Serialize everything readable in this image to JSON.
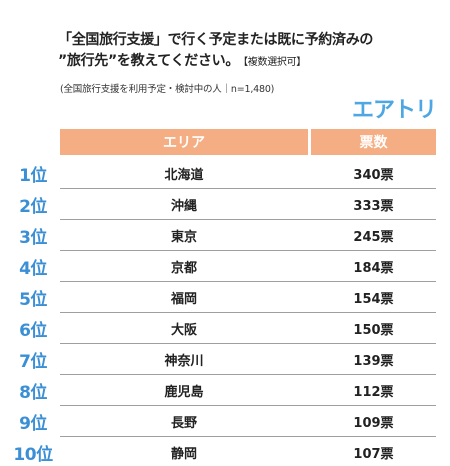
{
  "title": {
    "line1": "「全国旅行支援」で行く予定または既に予約済みの",
    "line2": "”旅行先”を教えてください。",
    "note": "【複数選択可】"
  },
  "subtitle": "(全国旅行支援を利用予定・検討中の人｜n=1,480)",
  "brand": "エアトリ",
  "colors": {
    "header": "#f5ae83",
    "rank": "#3b8fd4",
    "brand": "#4ea6e2"
  },
  "table": {
    "headers": {
      "area": "エリア",
      "votes": "票数"
    },
    "rows": [
      {
        "rank": "1位",
        "area": "北海道",
        "votes": "340票"
      },
      {
        "rank": "2位",
        "area": "沖縄",
        "votes": "333票"
      },
      {
        "rank": "3位",
        "area": "東京",
        "votes": "245票"
      },
      {
        "rank": "4位",
        "area": "京都",
        "votes": "184票"
      },
      {
        "rank": "5位",
        "area": "福岡",
        "votes": "154票"
      },
      {
        "rank": "6位",
        "area": "大阪",
        "votes": "150票"
      },
      {
        "rank": "7位",
        "area": "神奈川",
        "votes": "139票"
      },
      {
        "rank": "8位",
        "area": "鹿児島",
        "votes": "112票"
      },
      {
        "rank": "9位",
        "area": "長野",
        "votes": "109票"
      },
      {
        "rank": "10位",
        "area": "静岡",
        "votes": "107票"
      }
    ]
  }
}
